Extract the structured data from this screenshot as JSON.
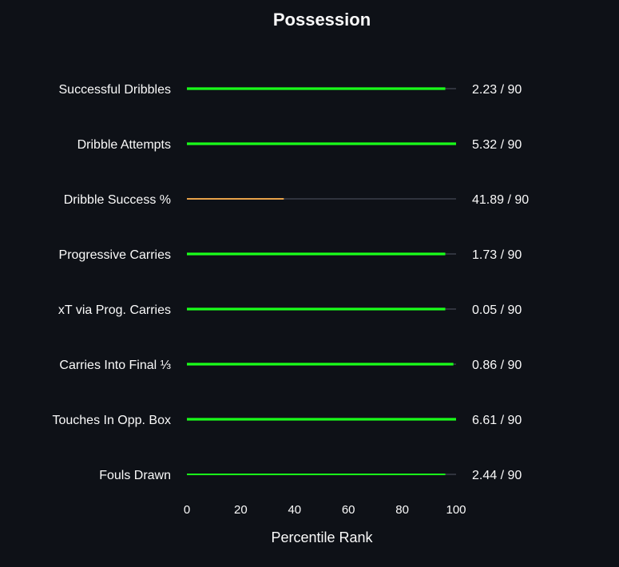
{
  "chart_data": {
    "type": "bar",
    "orientation": "horizontal",
    "title": "Possession",
    "xlabel": "Percentile Rank",
    "ylabel": "",
    "xlim": [
      0,
      100
    ],
    "x_ticks": [
      0,
      20,
      40,
      60,
      80,
      100
    ],
    "grid": false,
    "background_color": "#0e1117",
    "track_color": "#444a55",
    "text_color": "#fafafa",
    "categories": [
      "Successful Dribbles",
      "Dribble Attempts",
      "Dribble Success %",
      "Progressive Carries",
      "xT via Prog. Carries",
      "Carries Into Final ⅓",
      "Touches In Opp. Box",
      "Fouls Drawn"
    ],
    "values": [
      96,
      100,
      36,
      96,
      96,
      99,
      100,
      96
    ],
    "bar_colors": [
      "#1aff1a",
      "#1aff1a",
      "#e8a24a",
      "#1aff1a",
      "#1aff1a",
      "#1aff1a",
      "#1aff1a",
      "#1aff1a"
    ],
    "value_labels": [
      "2.23 / 90",
      "5.32 / 90",
      "41.89 / 90",
      "1.73 / 90",
      "0.05 / 90",
      "0.86 / 90",
      "6.61 / 90",
      "2.44 / 90"
    ]
  }
}
